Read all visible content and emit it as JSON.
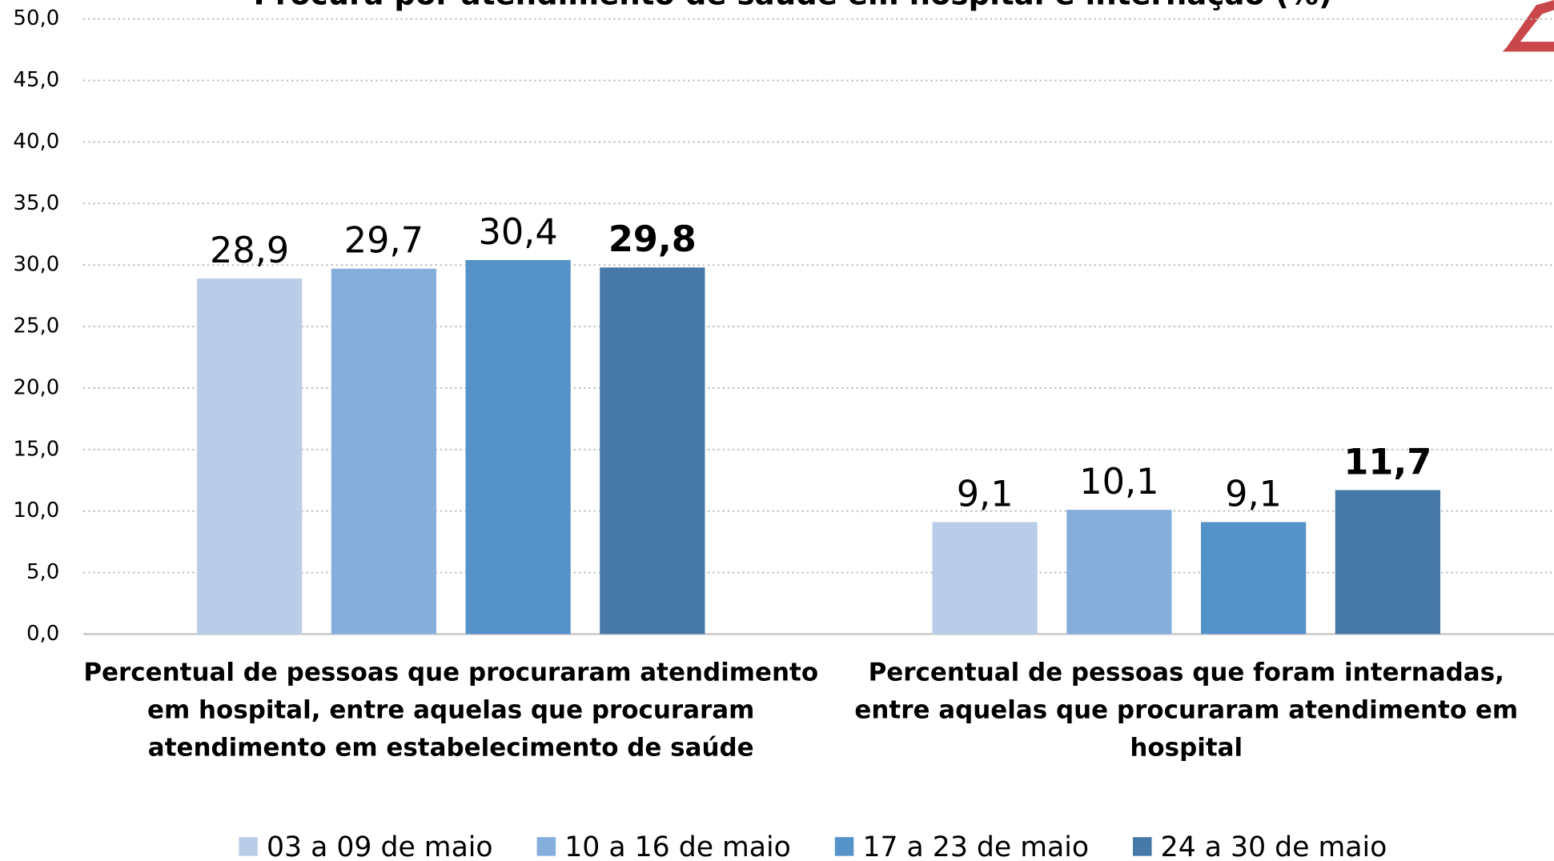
{
  "chart_data": {
    "type": "bar",
    "title": "Procura por atendimento de saúde em hospital e internação (%)",
    "categories": [
      "Percentual de pessoas que procuraram atendimento em hospital, entre aquelas que procuraram atendimento em estabelecimento de saúde",
      "Percentual de pessoas que foram internadas, entre aquelas que procuraram atendimento em hospital"
    ],
    "series": [
      {
        "name": "03 a 09 de maio",
        "color": "#b9cde8",
        "values": [
          28.9,
          9.1
        ],
        "value_labels": [
          "28,9",
          "9,1"
        ]
      },
      {
        "name": "10 a 16 de maio",
        "color": "#86aedc",
        "values": [
          29.7,
          10.1
        ],
        "value_labels": [
          "29,7",
          "10,1"
        ]
      },
      {
        "name": "17 a 23 de maio",
        "color": "#5592c8",
        "values": [
          30.4,
          9.1
        ],
        "value_labels": [
          "30,4",
          "9,1"
        ]
      },
      {
        "name": "24 a 30 de maio",
        "color": "#4678a8",
        "values": [
          29.8,
          11.7
        ],
        "value_labels": [
          "29,8",
          "11,7"
        ],
        "bold": true
      }
    ],
    "ylim": [
      0,
      50
    ],
    "yticks": [
      {
        "value": 0,
        "label": "0,0"
      },
      {
        "value": 5,
        "label": "5,0"
      },
      {
        "value": 10,
        "label": "10,0"
      },
      {
        "value": 15,
        "label": "15,0"
      },
      {
        "value": 20,
        "label": "20,0"
      },
      {
        "value": 25,
        "label": "25,0"
      },
      {
        "value": 30,
        "label": "30,0"
      },
      {
        "value": 35,
        "label": "35,0"
      },
      {
        "value": 40,
        "label": "40,0"
      },
      {
        "value": 45,
        "label": "45,0"
      },
      {
        "value": 50,
        "label": "50,0"
      }
    ],
    "grid": true
  }
}
